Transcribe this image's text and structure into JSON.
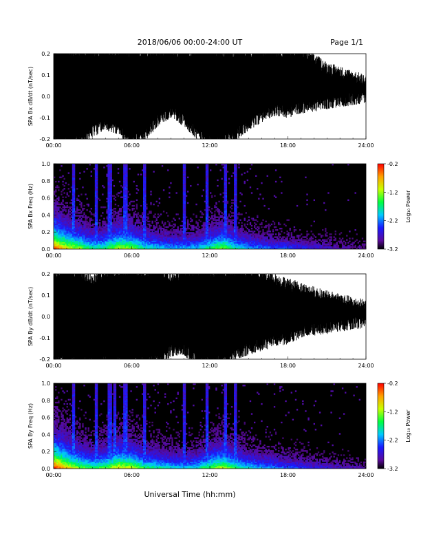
{
  "header": {
    "title": "2018/06/06  00:00-24:00 UT",
    "page": "Page 1/1"
  },
  "xlabel": "Universal Time (hh:mm)",
  "chart_data": [
    {
      "type": "line",
      "ylabel": "SPA Bx dB/dt (nT/sec)",
      "xlim": [
        "00:00",
        "24:00"
      ],
      "x_ticks": [
        "00:00",
        "06:00",
        "12:00",
        "18:00",
        "24:00"
      ],
      "ylim": [
        -0.2,
        0.2
      ],
      "y_ticks": [
        "-0.2",
        "-0.1",
        "0.0",
        "0.1",
        "0.2"
      ],
      "envelope": {
        "hours": [
          0,
          1,
          2,
          3,
          4,
          5,
          6,
          7,
          8,
          9,
          10,
          11,
          12,
          13,
          14,
          15,
          16,
          17,
          18,
          19,
          20,
          21,
          22,
          23,
          24
        ],
        "upper": [
          0.2,
          0.2,
          0.2,
          0.2,
          0.2,
          0.2,
          0.2,
          0.2,
          0.2,
          0.2,
          0.2,
          0.2,
          0.2,
          0.2,
          0.2,
          0.2,
          0.2,
          0.2,
          0.2,
          0.2,
          0.16,
          0.12,
          0.1,
          0.08,
          0.06
        ],
        "lower": [
          -0.2,
          -0.2,
          -0.2,
          -0.15,
          -0.12,
          -0.14,
          -0.2,
          -0.17,
          -0.1,
          -0.06,
          -0.1,
          -0.16,
          -0.2,
          -0.2,
          -0.17,
          -0.12,
          -0.08,
          -0.05,
          -0.06,
          -0.04,
          -0.03,
          -0.02,
          -0.01,
          0.0,
          0.01
        ]
      }
    },
    {
      "type": "heatmap",
      "ylabel": "SPA Bx Freq (Hz)",
      "xlim": [
        "00:00",
        "24:00"
      ],
      "x_ticks": [
        "00:00",
        "06:00",
        "12:00",
        "18:00",
        "24:00"
      ],
      "ylim": [
        0.0,
        1.0
      ],
      "y_ticks": [
        "0.0",
        "0.2",
        "0.4",
        "0.6",
        "0.8",
        "1.0"
      ],
      "colorbar": {
        "label": "Log₁₀ Power",
        "ticks": [
          "-0.2",
          "-1.2",
          "-2.2",
          "-3.2"
        ],
        "range": [
          -3.2,
          -0.2
        ]
      },
      "activity_hours": [
        0,
        1,
        2,
        3,
        4,
        5,
        6,
        7,
        8,
        9,
        10,
        11,
        12,
        13,
        14,
        15,
        16,
        17,
        18,
        19,
        20,
        21,
        22,
        23,
        24
      ],
      "activity": [
        0.95,
        0.75,
        0.65,
        0.5,
        0.55,
        0.7,
        0.65,
        0.5,
        0.45,
        0.4,
        0.4,
        0.42,
        0.55,
        0.65,
        0.5,
        0.4,
        0.35,
        0.3,
        0.3,
        0.25,
        0.2,
        0.18,
        0.15,
        0.12,
        0.1
      ],
      "spike_hours": [
        1.5,
        3.3,
        4.3,
        5.5,
        7.0,
        10.0,
        11.8,
        13.2,
        14.0
      ]
    },
    {
      "type": "line",
      "ylabel": "SPA By dB/dt (nT/sec)",
      "xlim": [
        "00:00",
        "24:00"
      ],
      "x_ticks": [
        "00:00",
        "06:00",
        "12:00",
        "18:00",
        "24:00"
      ],
      "ylim": [
        -0.2,
        0.2
      ],
      "y_ticks": [
        "-0.2",
        "-0.1",
        "0.0",
        "0.1",
        "0.2"
      ],
      "envelope": {
        "hours": [
          0,
          1,
          2,
          3,
          4,
          5,
          6,
          7,
          8,
          9,
          10,
          11,
          12,
          13,
          14,
          15,
          16,
          17,
          18,
          19,
          20,
          21,
          22,
          23,
          24
        ],
        "upper": [
          0.2,
          0.2,
          0.2,
          0.15,
          0.2,
          0.2,
          0.2,
          0.2,
          0.2,
          0.17,
          0.2,
          0.2,
          0.2,
          0.2,
          0.2,
          0.2,
          0.18,
          0.16,
          0.14,
          0.12,
          0.1,
          0.08,
          0.07,
          0.05,
          0.04
        ],
        "lower": [
          -0.2,
          -0.2,
          -0.2,
          -0.2,
          -0.2,
          -0.2,
          -0.2,
          -0.2,
          -0.2,
          -0.15,
          -0.14,
          -0.2,
          -0.2,
          -0.2,
          -0.16,
          -0.14,
          -0.12,
          -0.1,
          -0.09,
          -0.06,
          -0.05,
          -0.04,
          -0.03,
          -0.02,
          -0.01
        ]
      }
    },
    {
      "type": "heatmap",
      "ylabel": "SPA By Freq (Hz)",
      "xlim": [
        "00:00",
        "24:00"
      ],
      "x_ticks": [
        "00:00",
        "06:00",
        "12:00",
        "18:00",
        "24:00"
      ],
      "ylim": [
        0.0,
        1.0
      ],
      "y_ticks": [
        "0.0",
        "0.2",
        "0.4",
        "0.6",
        "0.8",
        "1.0"
      ],
      "colorbar": {
        "label": "Log₁₀ Power",
        "ticks": [
          "-0.2",
          "-1.2",
          "-2.2",
          "-3.2"
        ],
        "range": [
          -3.2,
          -0.2
        ]
      },
      "activity_hours": [
        0,
        1,
        2,
        3,
        4,
        5,
        6,
        7,
        8,
        9,
        10,
        11,
        12,
        13,
        14,
        15,
        16,
        17,
        18,
        19,
        20,
        21,
        22,
        23,
        24
      ],
      "activity": [
        1.0,
        0.8,
        0.65,
        0.55,
        0.6,
        0.75,
        0.7,
        0.55,
        0.5,
        0.45,
        0.42,
        0.45,
        0.6,
        0.7,
        0.55,
        0.45,
        0.4,
        0.35,
        0.3,
        0.28,
        0.22,
        0.2,
        0.17,
        0.14,
        0.12
      ],
      "spike_hours": [
        1.5,
        3.3,
        4.3,
        4.7,
        5.5,
        7.0,
        10.0,
        11.8,
        13.2,
        14.0
      ]
    }
  ]
}
